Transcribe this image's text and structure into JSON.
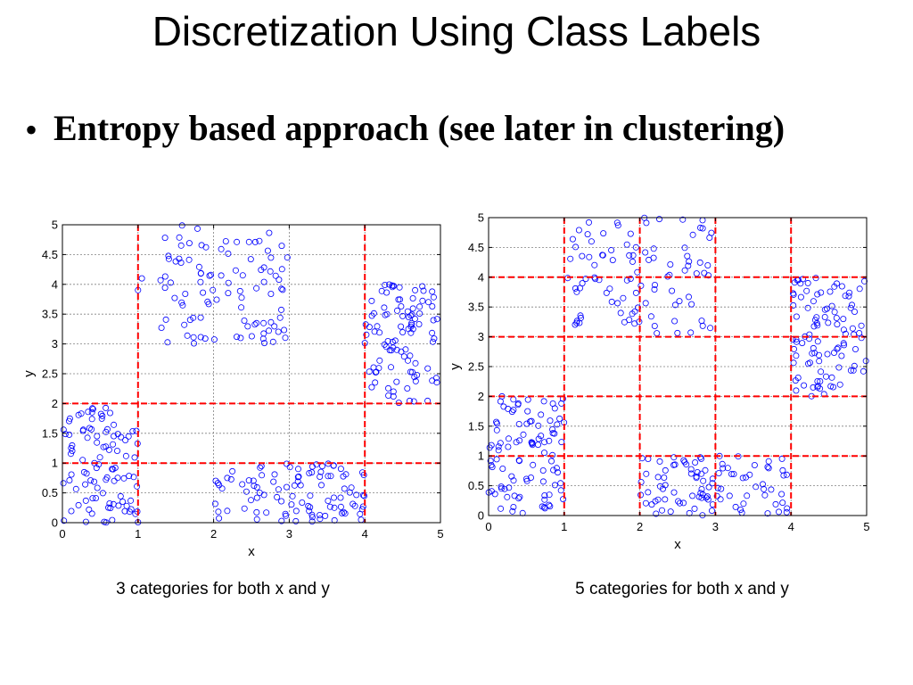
{
  "slide": {
    "title": "Discretization Using Class Labels",
    "bullet": "Entropy based approach (see later in clustering)",
    "captions": [
      "3 categories for both x and y",
      "5 categories for both x and y"
    ]
  },
  "colors": {
    "points": "#0000ff",
    "split_lines": "#ff0000",
    "grid": "#808080"
  },
  "chart_data": [
    {
      "type": "scatter",
      "xlabel": "x",
      "ylabel": "y",
      "xlim": [
        0,
        5
      ],
      "ylim": [
        0,
        5
      ],
      "xticks": [
        "0",
        "1",
        "2",
        "3",
        "4",
        "5"
      ],
      "yticks": [
        "0",
        "0.5",
        "1",
        "1.5",
        "2",
        "2.5",
        "3",
        "3.5",
        "4",
        "4.5",
        "5"
      ],
      "grid": true,
      "marker": "open circle",
      "split_x": [
        1,
        4
      ],
      "split_y": [
        1,
        2
      ],
      "clusters": [
        {
          "x": [
            0,
            1
          ],
          "y": [
            0,
            2
          ],
          "points": 100
        },
        {
          "x": [
            1,
            3
          ],
          "y": [
            3,
            5
          ],
          "points": 100
        },
        {
          "x": [
            2,
            4
          ],
          "y": [
            0,
            1
          ],
          "points": 100
        },
        {
          "x": [
            4,
            5
          ],
          "y": [
            2,
            4
          ],
          "points": 100
        }
      ]
    },
    {
      "type": "scatter",
      "xlabel": "x",
      "ylabel": "y",
      "xlim": [
        0,
        5
      ],
      "ylim": [
        0,
        5
      ],
      "xticks": [
        "0",
        "1",
        "2",
        "3",
        "4",
        "5"
      ],
      "yticks": [
        "0",
        "0.5",
        "1",
        "1.5",
        "2",
        "2.5",
        "3",
        "3.5",
        "4",
        "4.5",
        "5"
      ],
      "grid": true,
      "marker": "open circle",
      "split_x": [
        1,
        2,
        3,
        4
      ],
      "split_y": [
        1,
        2,
        3,
        4
      ],
      "clusters": [
        {
          "x": [
            0,
            1
          ],
          "y": [
            0,
            2
          ],
          "points": 100
        },
        {
          "x": [
            1,
            3
          ],
          "y": [
            3,
            5
          ],
          "points": 100
        },
        {
          "x": [
            2,
            4
          ],
          "y": [
            0,
            1
          ],
          "points": 100
        },
        {
          "x": [
            4,
            5
          ],
          "y": [
            2,
            4
          ],
          "points": 100
        }
      ]
    }
  ]
}
